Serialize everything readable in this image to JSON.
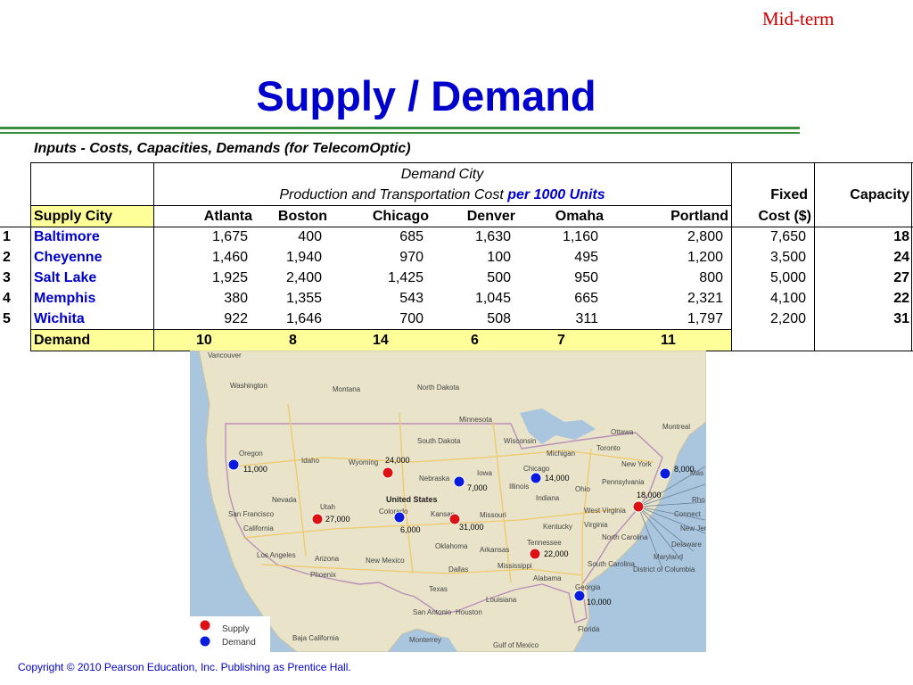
{
  "header": {
    "midterm": "Mid-term",
    "title": "Supply / Demand"
  },
  "table": {
    "heading": "Inputs - Costs, Capacities, Demands (for TelecomOptic)",
    "demand_city_label": "Demand City",
    "cost_label_prefix": "Production and Transportation Cost",
    "cost_label_suffix": "per 1000 Units",
    "fixed_label_1": "Fixed",
    "fixed_label_2": "Cost ($)",
    "capacity_label": "Capacity",
    "supply_city_label": "Supply City",
    "columns": [
      "Atlanta",
      "Boston",
      "Chicago",
      "Denver",
      "Omaha",
      "Portland"
    ],
    "rows": [
      {
        "num": "1",
        "city": "Baltimore",
        "costs": [
          "1,675",
          "400",
          "685",
          "1,630",
          "1,160",
          "2,800"
        ],
        "fixed": "7,650",
        "capacity": "18"
      },
      {
        "num": "2",
        "city": "Cheyenne",
        "costs": [
          "1,460",
          "1,940",
          "970",
          "100",
          "495",
          "1,200"
        ],
        "fixed": "3,500",
        "capacity": "24"
      },
      {
        "num": "3",
        "city": "Salt Lake",
        "costs": [
          "1,925",
          "2,400",
          "1,425",
          "500",
          "950",
          "800"
        ],
        "fixed": "5,000",
        "capacity": "27"
      },
      {
        "num": "4",
        "city": "Memphis",
        "costs": [
          "380",
          "1,355",
          "543",
          "1,045",
          "665",
          "2,321"
        ],
        "fixed": "4,100",
        "capacity": "22"
      },
      {
        "num": "5",
        "city": "Wichita",
        "costs": [
          "922",
          "1,646",
          "700",
          "508",
          "311",
          "1,797"
        ],
        "fixed": "2,200",
        "capacity": "31"
      }
    ],
    "demand_label": "Demand",
    "demands": [
      "10",
      "8",
      "14",
      "6",
      "7",
      "11"
    ]
  },
  "map": {
    "colors": {
      "supply": "#dd1111",
      "demand": "#0b1bdd",
      "water": "#a9c6de",
      "land": "#e8e3c9"
    },
    "places": [
      "Vancouver",
      "Washington",
      "Montana",
      "North Dakota",
      "Minnesota",
      "Oregon",
      "Idaho",
      "South Dakota",
      "Wisconsin",
      "Michigan",
      "Ottawa",
      "Montreal",
      "Toronto",
      "Wyoming",
      "Nebraska",
      "Iowa",
      "Chicago",
      "New York",
      "Nevada",
      "Utah",
      "Colorado",
      "United States",
      "Illinois",
      "Indiana",
      "Ohio",
      "Pennsylvania",
      "San Francisco",
      "California",
      "Kansas",
      "Missouri",
      "West Virginia",
      "Kentucky",
      "Virginia",
      "Los Angeles",
      "Arizona",
      "New Mexico",
      "Oklahoma",
      "Arkansas",
      "Tennessee",
      "North Carolina",
      "South Carolina",
      "Maryland",
      "Delaware",
      "Phoenix",
      "Dallas",
      "Mississippi",
      "Alabama",
      "District of Columbia",
      "Georgia",
      "Texas",
      "Louisiana",
      "San Antonio",
      "Houston",
      "Florida",
      "Baja California",
      "Monterrey",
      "Gulf of Mexico",
      "Connect",
      "New Jer",
      "Rho",
      "Mas"
    ],
    "markers": [
      {
        "kind": "demand",
        "value": "11,000"
      },
      {
        "kind": "supply",
        "value": "24,000"
      },
      {
        "kind": "demand",
        "value": "7,000"
      },
      {
        "kind": "demand",
        "value": "14,000"
      },
      {
        "kind": "demand",
        "value": "8,000"
      },
      {
        "kind": "supply",
        "value": "18,000"
      },
      {
        "kind": "supply",
        "value": "27,000"
      },
      {
        "kind": "demand",
        "value": "6,000"
      },
      {
        "kind": "supply",
        "value": "31,000"
      },
      {
        "kind": "supply",
        "value": "22,000"
      },
      {
        "kind": "demand",
        "value": "10,000"
      }
    ],
    "legend": {
      "supply": "Supply",
      "demand": "Demand"
    }
  },
  "footer": {
    "copyright": "Copyright © 2010 Pearson Education, Inc. Publishing as Prentice Hall."
  }
}
